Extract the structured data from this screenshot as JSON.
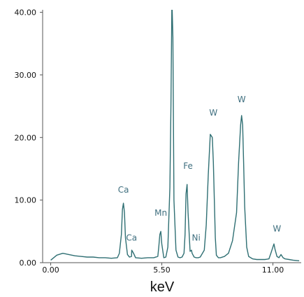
{
  "chart_data": {
    "type": "line",
    "title": "",
    "xlabel": "keV",
    "ylabel": "",
    "xlim": [
      -0.4,
      12.4
    ],
    "ylim": [
      0,
      40.4
    ],
    "grid": false,
    "x_ticks": [
      {
        "value": 0.0,
        "label": "0.00"
      },
      {
        "value": 5.5,
        "label": "5.50"
      },
      {
        "value": 11.0,
        "label": "11.00"
      }
    ],
    "y_ticks": [
      {
        "value": 0,
        "label": "0.00"
      },
      {
        "value": 10,
        "label": "10.00"
      },
      {
        "value": 20,
        "label": "20.00"
      },
      {
        "value": 30,
        "label": "30.00"
      },
      {
        "value": 40,
        "label": "40.00"
      }
    ],
    "series": [
      {
        "color": "#2f6f73",
        "x": [
          0.0,
          0.3,
          0.6,
          0.9,
          1.2,
          1.5,
          1.8,
          2.1,
          2.4,
          2.7,
          3.0,
          3.3,
          3.4,
          3.5,
          3.55,
          3.6,
          3.65,
          3.7,
          3.8,
          3.9,
          4.0,
          4.01,
          4.1,
          4.2,
          4.5,
          4.8,
          5.1,
          5.3,
          5.35,
          5.4,
          5.45,
          5.5,
          5.6,
          5.7,
          5.8,
          5.9,
          5.95,
          6.0,
          6.05,
          6.1,
          6.2,
          6.3,
          6.4,
          6.5,
          6.6,
          6.65,
          6.7,
          6.75,
          6.8,
          6.9,
          6.97,
          7.0,
          7.1,
          7.2,
          7.3,
          7.4,
          7.6,
          7.7,
          7.8,
          7.9,
          8.0,
          8.05,
          8.1,
          8.15,
          8.2,
          8.3,
          8.4,
          8.6,
          8.8,
          9.0,
          9.2,
          9.3,
          9.4,
          9.45,
          9.5,
          9.55,
          9.6,
          9.7,
          9.8,
          9.9,
          10.0,
          10.2,
          10.4,
          10.6,
          10.8,
          10.9,
          11.0,
          11.05,
          11.1,
          11.2,
          11.3,
          11.4,
          11.5,
          11.6,
          11.8,
          12.0,
          12.3
        ],
        "y": [
          0.4,
          1.2,
          1.5,
          1.3,
          1.1,
          1.0,
          0.9,
          0.9,
          0.8,
          0.8,
          0.7,
          0.8,
          1.5,
          4.5,
          8.5,
          9.5,
          8.0,
          4.0,
          1.3,
          0.9,
          1.0,
          2.0,
          1.5,
          0.8,
          0.7,
          0.8,
          0.8,
          1.0,
          2.5,
          4.5,
          5.0,
          3.0,
          0.8,
          0.9,
          2.5,
          12.0,
          25.0,
          42.0,
          36.0,
          10.0,
          2.0,
          0.9,
          0.8,
          0.9,
          1.5,
          4.5,
          11.0,
          12.5,
          8.0,
          1.8,
          2.0,
          1.5,
          0.9,
          0.8,
          0.8,
          0.9,
          2.0,
          6.0,
          14.0,
          20.5,
          20.0,
          16.0,
          10.0,
          4.0,
          1.2,
          0.8,
          0.8,
          1.0,
          1.5,
          3.5,
          8.0,
          16.0,
          22.0,
          23.5,
          22.0,
          16.0,
          9.0,
          2.5,
          1.0,
          0.8,
          0.6,
          0.5,
          0.5,
          0.5,
          0.6,
          1.5,
          2.5,
          3.0,
          2.2,
          1.0,
          0.8,
          1.3,
          0.8,
          0.6,
          0.5,
          0.4,
          0.3
        ]
      }
    ],
    "annotations": [
      {
        "text": "Ca",
        "x": 3.6,
        "y": 11.2,
        "color": "#3f6f7f"
      },
      {
        "text": "Ca",
        "x": 4.0,
        "y": 3.5,
        "color": "#3f6f7f"
      },
      {
        "text": "Mn",
        "x": 5.45,
        "y": 7.5,
        "color": "#3f6f7f"
      },
      {
        "text": "Fe",
        "x": 6.8,
        "y": 15.0,
        "color": "#3f6f7f"
      },
      {
        "text": "Ni",
        "x": 7.2,
        "y": 3.5,
        "color": "#3f6f7f"
      },
      {
        "text": "W",
        "x": 8.05,
        "y": 23.5,
        "color": "#3f6f7f"
      },
      {
        "text": "W",
        "x": 9.45,
        "y": 25.6,
        "color": "#3f6f7f"
      },
      {
        "text": "W",
        "x": 11.2,
        "y": 5.0,
        "color": "#3f6f7f"
      }
    ]
  }
}
